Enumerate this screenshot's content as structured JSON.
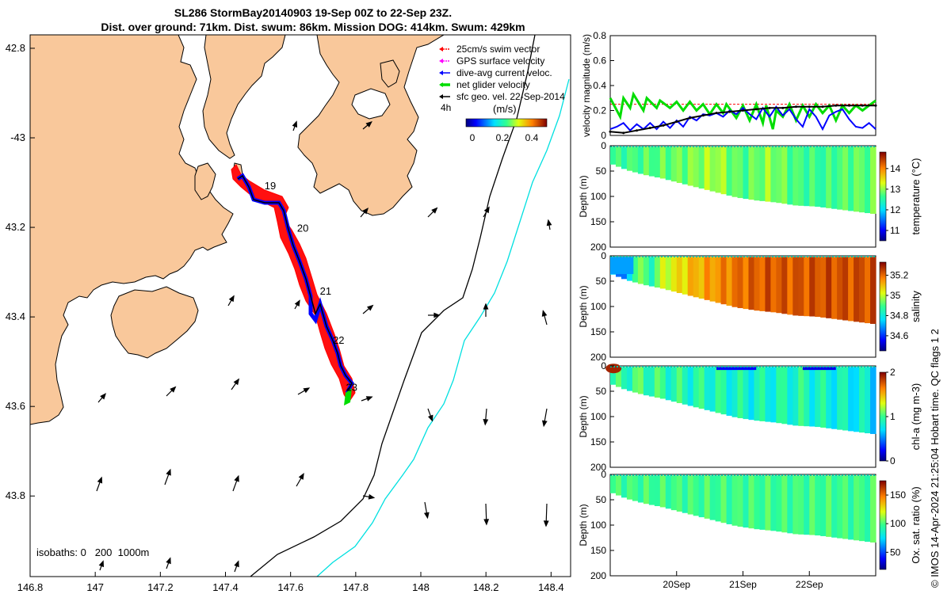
{
  "header": {
    "title_line1": "SL286 StormBay20140903 19-Sep 00Z to 22-Sep 23Z.",
    "title_line2": "Dist. over ground: 71km. Dist. swum: 86km. Mission DOG: 414km. Swum: 429km"
  },
  "credit": "© IMOS 14-Apr-2024 21:25:04 Hobart time. QC flags 1  2",
  "map": {
    "lon_ticks": [
      "146.8",
      "147",
      "147.2",
      "147.4",
      "147.6",
      "147.8",
      "148",
      "148.2",
      "148.4"
    ],
    "lat_ticks": [
      "42.8",
      "-43",
      "43.2",
      "43.4",
      "43.6",
      "43.8"
    ],
    "lat_values": [
      -42.8,
      -43.0,
      -43.2,
      -43.4,
      -43.6,
      -43.8
    ],
    "lon_values": [
      146.8,
      147.0,
      147.2,
      147.4,
      147.6,
      147.8,
      148.0,
      148.2,
      148.4
    ],
    "legend": [
      {
        "label": "25cm/s swim vector",
        "color": "#ff0000"
      },
      {
        "label": "GPS surface velocity",
        "color": "#ff00ff"
      },
      {
        "label": "dive-avg current veloc.",
        "color": "#0000ff"
      },
      {
        "label": "net glider velocity",
        "color": "#00dd00"
      },
      {
        "label": "sfc geo. vel. 22-Sep-2014",
        "color": "#000000"
      }
    ],
    "hours_label": "4h",
    "colorbar_label": "(m/s)",
    "colorbar_ticks": [
      "0",
      "0.2",
      "0.4"
    ],
    "day_labels": [
      {
        "label": "19",
        "lon": 147.52,
        "lat": -43.115
      },
      {
        "label": "20",
        "lon": 147.62,
        "lat": -43.21
      },
      {
        "label": "21",
        "lon": 147.69,
        "lat": -43.35
      },
      {
        "label": "22",
        "lon": 147.73,
        "lat": -43.46
      },
      {
        "label": "23",
        "lon": 147.77,
        "lat": -43.565
      }
    ],
    "isobaths_label": "isobaths: 0   200  1000m",
    "land_color": "#f9c89b",
    "iso200_color": "#000000",
    "iso1000_color": "#00e0e0"
  },
  "chart_data": [
    {
      "type": "line",
      "title": "",
      "ylabel": "velocity magnitude (m/s)",
      "ylim": [
        0,
        0.8
      ],
      "yticks": [
        "0",
        "0.2",
        "0.4",
        "0.6",
        "0.8"
      ],
      "xlim": [
        19.0,
        23.0
      ],
      "series": [
        {
          "name": "25cm/s swim vector",
          "color": "#ff0000",
          "x": [
            19.0,
            23.0
          ],
          "values": [
            0.25,
            0.25
          ]
        },
        {
          "name": "net glider velocity",
          "color": "#00dd00",
          "x": [
            19.0,
            19.15,
            19.2,
            19.3,
            19.35,
            19.5,
            19.55,
            19.7,
            19.75,
            19.9,
            20.0,
            20.1,
            20.2,
            20.3,
            20.4,
            20.5,
            20.6,
            20.7,
            20.75,
            20.9,
            21.0,
            21.1,
            21.2,
            21.3,
            21.35,
            21.45,
            21.5,
            21.6,
            21.7,
            21.8,
            21.9,
            22.0,
            22.1,
            22.2,
            22.3,
            22.4,
            22.5,
            22.6,
            22.7,
            22.8,
            22.9,
            23.0
          ],
          "values": [
            0.3,
            0.15,
            0.3,
            0.22,
            0.33,
            0.2,
            0.3,
            0.22,
            0.28,
            0.22,
            0.27,
            0.2,
            0.27,
            0.2,
            0.25,
            0.17,
            0.25,
            0.18,
            0.25,
            0.14,
            0.24,
            0.12,
            0.25,
            0.1,
            0.24,
            0.05,
            0.2,
            0.15,
            0.25,
            0.12,
            0.24,
            0.15,
            0.25,
            0.18,
            0.24,
            0.12,
            0.24,
            0.18,
            0.24,
            0.2,
            0.24,
            0.28
          ]
        },
        {
          "name": "dive-avg current veloc.",
          "color": "#0000ff",
          "x": [
            19.0,
            19.1,
            19.2,
            19.3,
            19.4,
            19.5,
            19.6,
            19.7,
            19.8,
            19.9,
            20.0,
            20.1,
            20.2,
            20.3,
            20.4,
            20.5,
            20.6,
            20.7,
            20.8,
            20.9,
            21.0,
            21.1,
            21.2,
            21.3,
            21.4,
            21.5,
            21.6,
            21.7,
            21.8,
            21.9,
            22.0,
            22.1,
            22.2,
            22.3,
            22.4,
            22.5,
            22.6,
            22.7,
            22.8,
            22.9,
            23.0
          ],
          "values": [
            0.05,
            0.07,
            0.1,
            0.04,
            0.09,
            0.05,
            0.1,
            0.05,
            0.11,
            0.06,
            0.12,
            0.07,
            0.15,
            0.12,
            0.17,
            0.16,
            0.18,
            0.15,
            0.2,
            0.17,
            0.22,
            0.17,
            0.13,
            0.22,
            0.15,
            0.23,
            0.16,
            0.21,
            0.13,
            0.07,
            0.21,
            0.15,
            0.05,
            0.16,
            0.19,
            0.21,
            0.13,
            0.07,
            0.06,
            0.1,
            0.05
          ]
        },
        {
          "name": "sfc geo. vel. 22-Sep-2014",
          "color": "#000000",
          "x": [
            19.0,
            19.2,
            19.4,
            19.6,
            19.8,
            20.0,
            20.2,
            20.4,
            20.6,
            20.8,
            21.0,
            21.2,
            21.4,
            21.6,
            21.8,
            22.0,
            22.2,
            22.4,
            22.6,
            22.8,
            23.0
          ],
          "values": [
            0.03,
            0.02,
            0.04,
            0.06,
            0.08,
            0.11,
            0.14,
            0.16,
            0.18,
            0.19,
            0.2,
            0.21,
            0.22,
            0.22,
            0.23,
            0.23,
            0.23,
            0.24,
            0.24,
            0.24,
            0.24
          ]
        }
      ]
    },
    {
      "type": "heatmap",
      "variable": "temperature",
      "ylabel": "Depth (m)",
      "clabel": "temperature (°C)",
      "ylim": [
        0,
        200
      ],
      "yticks": [
        "0",
        "50",
        "100",
        "150",
        "200"
      ],
      "ctick_values": [
        11,
        12,
        13,
        14
      ],
      "ctick_labels": [
        "11",
        "12",
        "13",
        "14"
      ],
      "clim": [
        10.5,
        14.8
      ],
      "xlim": [
        19.0,
        23.0
      ],
      "bottom_x": [
        19.0,
        19.25,
        19.5,
        19.8,
        20.0,
        20.3,
        20.6,
        20.9,
        21.2,
        21.5,
        21.8,
        22.1,
        22.4,
        22.7,
        23.0
      ],
      "bottom_depth": [
        35,
        48,
        57,
        65,
        72,
        82,
        92,
        102,
        108,
        112,
        118,
        120,
        125,
        130,
        135
      ],
      "time_x": [
        19.0,
        19.4,
        19.8,
        20.2,
        20.6,
        21.0,
        21.4,
        21.8,
        22.2,
        22.6,
        23.0
      ],
      "values": [
        12.6,
        12.7,
        12.8,
        12.9,
        13.1,
        12.7,
        13.0,
        12.7,
        12.6,
        12.8,
        12.8
      ]
    },
    {
      "type": "heatmap",
      "variable": "salinity",
      "ylabel": "Depth (m)",
      "clabel": "salinity",
      "ylim": [
        0,
        200
      ],
      "yticks": [
        "0",
        "50",
        "100",
        "150",
        "200"
      ],
      "ctick_values": [
        34.6,
        34.8,
        35.0,
        35.2
      ],
      "ctick_labels": [
        "34.6",
        "34.8",
        "35",
        "35.2"
      ],
      "clim": [
        34.45,
        35.33
      ],
      "xlim": [
        19.0,
        23.0
      ],
      "time_x": [
        19.0,
        19.4,
        19.8,
        20.2,
        20.6,
        21.0,
        21.4,
        21.8,
        22.2,
        22.6,
        23.0
      ],
      "values": [
        34.75,
        34.8,
        35.0,
        35.1,
        35.15,
        35.2,
        35.22,
        35.22,
        35.23,
        35.23,
        35.23
      ]
    },
    {
      "type": "heatmap",
      "variable": "chl-a",
      "ylabel": "Depth (m)",
      "clabel": "chl-a (mg m-3)",
      "ylim": [
        0,
        200
      ],
      "yticks": [
        "0",
        "50",
        "100",
        "150",
        "200"
      ],
      "ctick_values": [
        0,
        1,
        2
      ],
      "ctick_labels": [
        "0",
        "1",
        "2"
      ],
      "clim": [
        0,
        2
      ],
      "xlim": [
        19.0,
        23.0
      ],
      "time_x": [
        19.0,
        19.4,
        19.8,
        20.2,
        20.6,
        21.0,
        21.4,
        21.8,
        22.2,
        22.6,
        23.0
      ],
      "values": [
        0.9,
        1.0,
        0.95,
        0.9,
        0.9,
        0.85,
        0.85,
        0.9,
        0.85,
        0.8,
        0.75
      ]
    },
    {
      "type": "heatmap",
      "variable": "oxygen",
      "ylabel": "Depth (m)",
      "clabel": "Ox. sat. ratio (%)",
      "ylim": [
        0,
        200
      ],
      "yticks": [
        "0",
        "50",
        "100",
        "150",
        "200"
      ],
      "ctick_values": [
        50,
        100,
        150
      ],
      "ctick_labels": [
        "50",
        "100",
        "150"
      ],
      "clim": [
        20,
        175
      ],
      "xlim": [
        19.0,
        23.0
      ],
      "time_x": [
        19.0,
        23.0
      ],
      "values": [
        98,
        98
      ]
    }
  ],
  "time_axis": {
    "ticks": [
      {
        "label": "20Sep",
        "value": 20
      },
      {
        "label": "21Sep",
        "value": 21
      },
      {
        "label": "22Sep",
        "value": 22
      }
    ]
  }
}
